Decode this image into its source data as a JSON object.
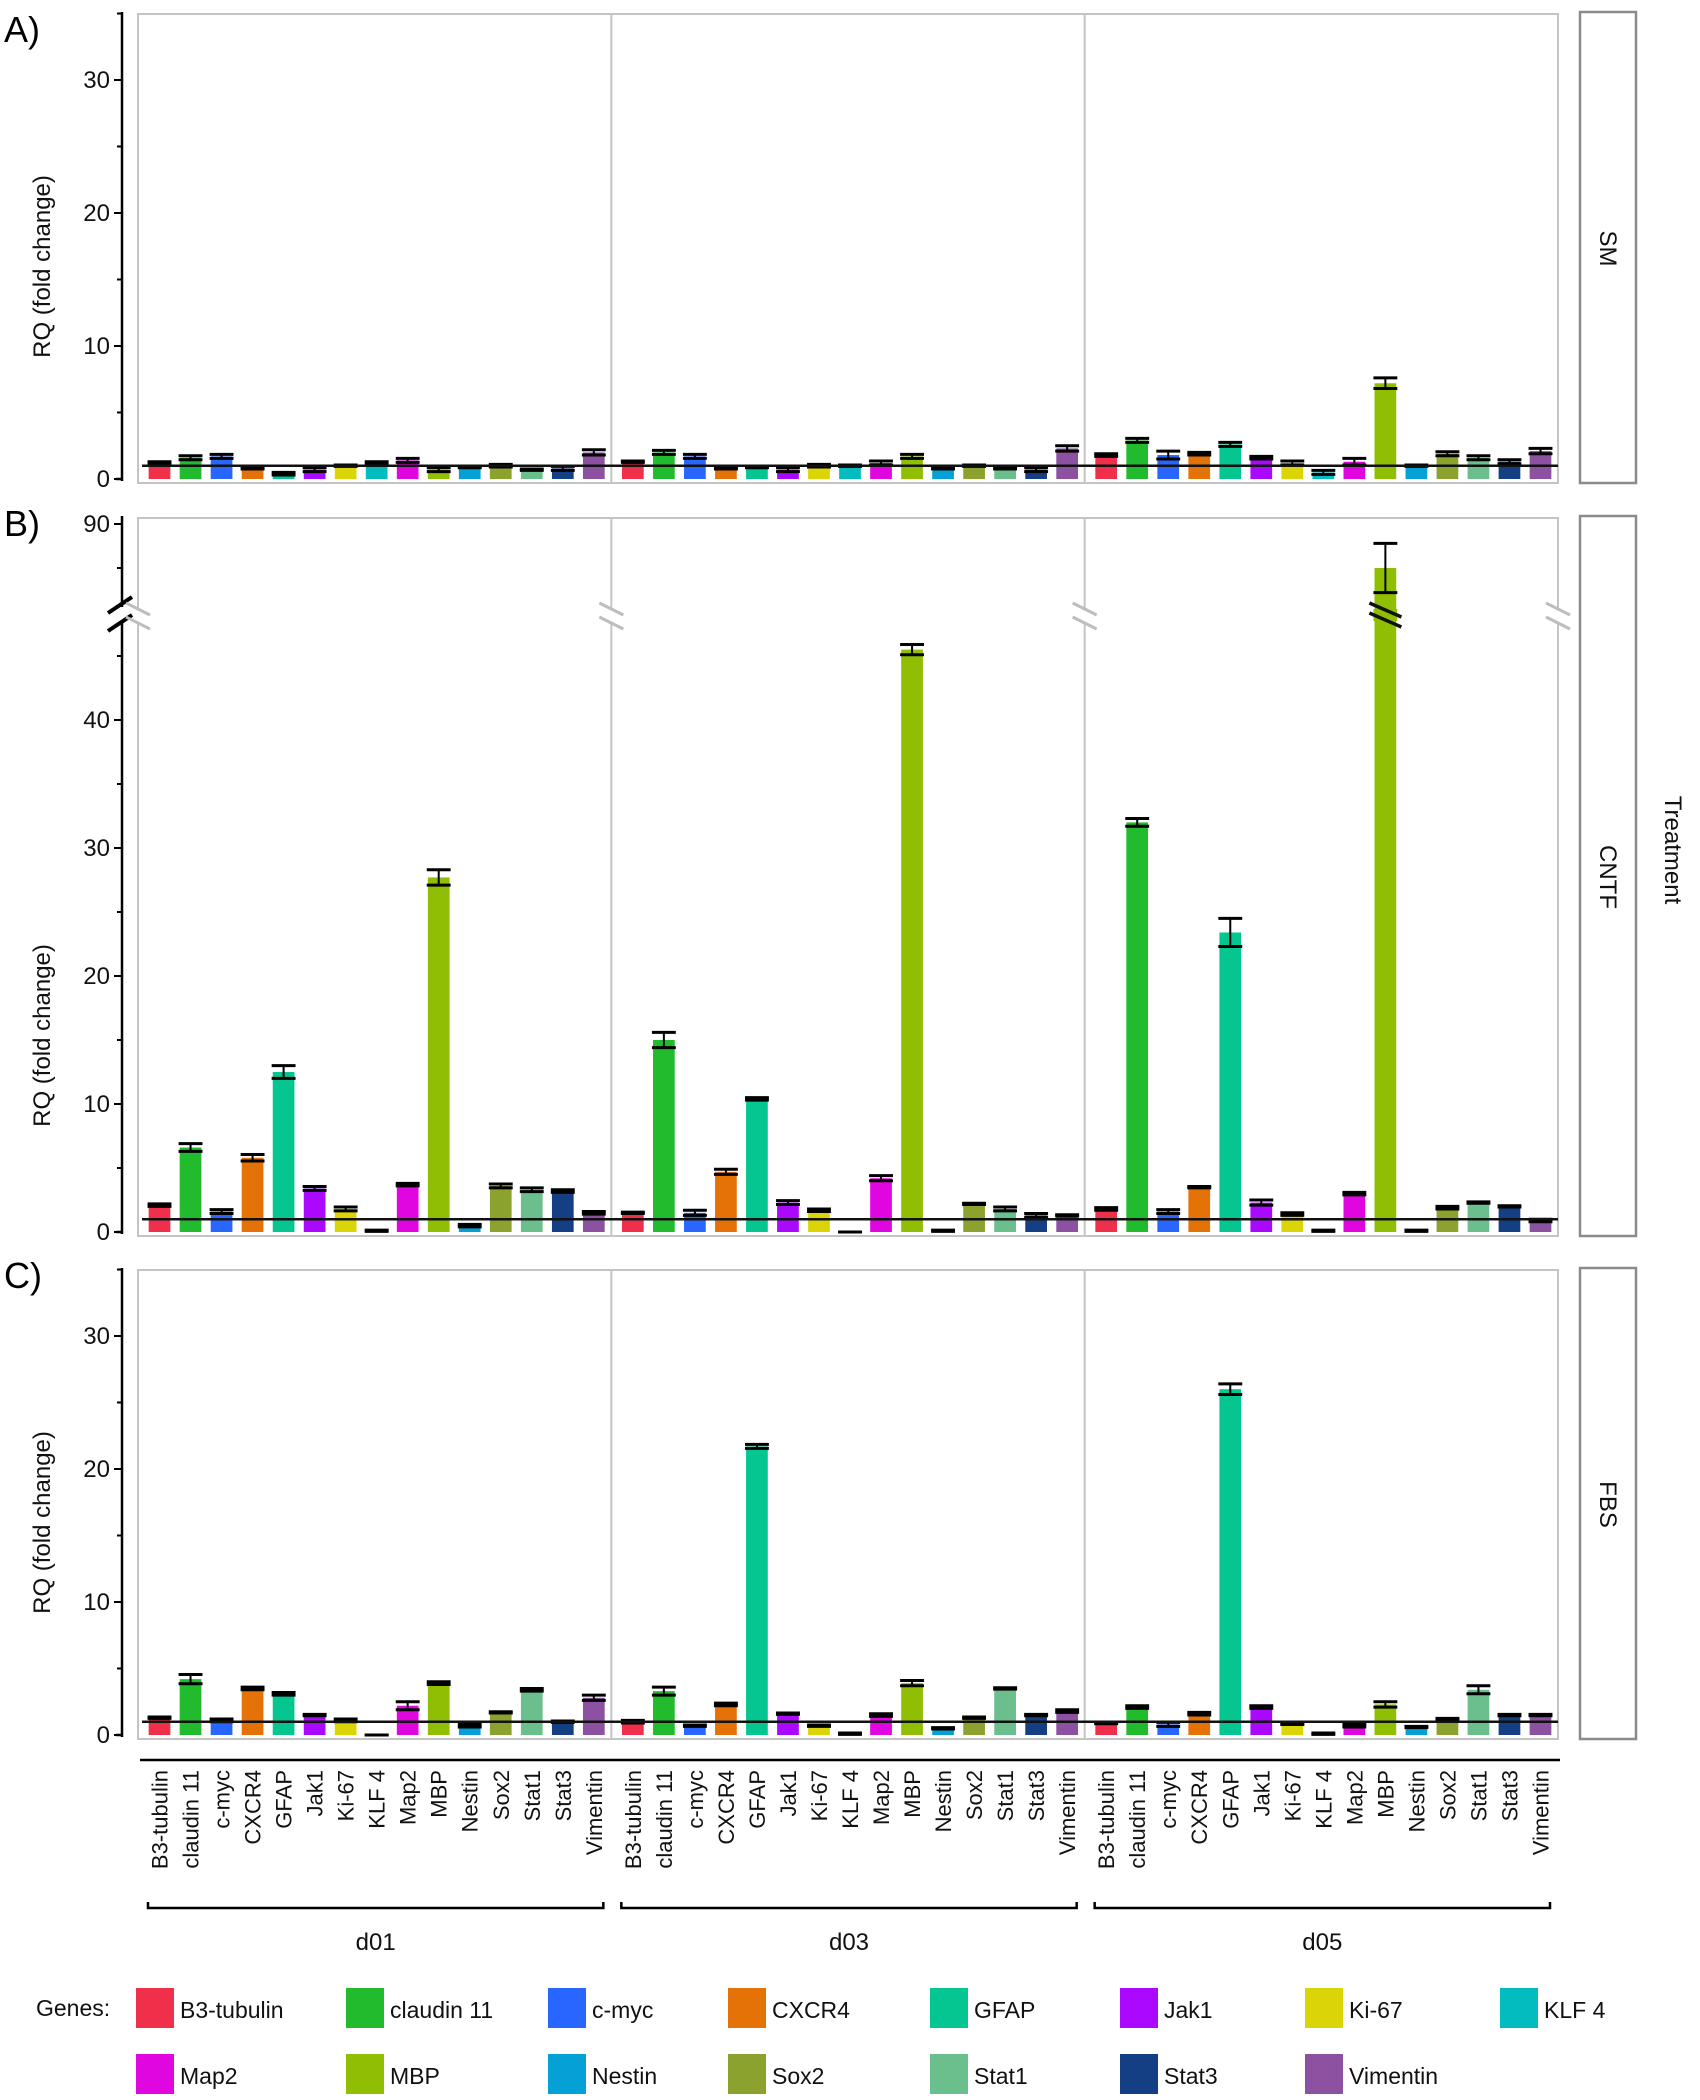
{
  "chart_data": {
    "type": "bar",
    "title": "",
    "ylabel": "RQ (fold change)",
    "facet_label": "Treatment",
    "reference_line": 1,
    "groups": [
      "d01",
      "d03",
      "d05"
    ],
    "categories": [
      "B3-tubulin",
      "claudin 11",
      "c-myc",
      "CXCR4",
      "GFAP",
      "Jak1",
      "Ki-67",
      "KLF 4",
      "Map2",
      "MBP",
      "Nestin",
      "Sox2",
      "Stat1",
      "Stat3",
      "Vimentin"
    ],
    "colors": [
      "#f0304a",
      "#22bb2e",
      "#2866ff",
      "#e57207",
      "#05c690",
      "#aa08ff",
      "#dbd406",
      "#03bcbf",
      "#e006e0",
      "#8fbe03",
      "#05a1d6",
      "#8ca22f",
      "#6bbf8d",
      "#143f84",
      "#8c52a1"
    ],
    "legend": {
      "title": "Genes:",
      "placement": "bottom"
    },
    "panels": [
      {
        "label": "A)",
        "treatment": "SM",
        "ylim": [
          0,
          35
        ],
        "yticks": [
          0,
          10,
          20,
          30
        ],
        "series": [
          {
            "group": "d01",
            "values": [
              1.2,
              1.6,
              1.7,
              0.8,
              0.4,
              0.7,
              1.0,
              1.2,
              1.4,
              0.7,
              0.9,
              1.0,
              0.7,
              0.8,
              2.0
            ],
            "errors": [
              0.1,
              0.15,
              0.15,
              0.05,
              0.1,
              0.15,
              0.05,
              0.1,
              0.15,
              0.15,
              0.05,
              0.1,
              0.05,
              0.15,
              0.2
            ]
          },
          {
            "group": "d03",
            "values": [
              1.3,
              2.0,
              1.7,
              0.8,
              0.9,
              0.7,
              1.0,
              1.0,
              1.2,
              1.7,
              0.8,
              1.0,
              0.8,
              0.7,
              2.3
            ],
            "errors": [
              0.05,
              0.15,
              0.15,
              0.05,
              0.05,
              0.15,
              0.1,
              0.05,
              0.15,
              0.15,
              0.05,
              0.05,
              0.05,
              0.15,
              0.2
            ]
          },
          {
            "group": "d05",
            "values": [
              1.8,
              2.9,
              1.8,
              1.9,
              2.6,
              1.6,
              1.2,
              0.5,
              1.3,
              7.2,
              1.0,
              1.9,
              1.6,
              1.3,
              2.1
            ],
            "errors": [
              0.1,
              0.15,
              0.3,
              0.1,
              0.15,
              0.1,
              0.15,
              0.15,
              0.25,
              0.4,
              0.05,
              0.15,
              0.15,
              0.15,
              0.2
            ]
          }
        ]
      },
      {
        "label": "B)",
        "treatment": "CNTF",
        "ylim": [
          0,
          90
        ],
        "axis_break": [
          48,
          80
        ],
        "yticks": [
          0,
          10,
          20,
          30,
          40,
          90
        ],
        "series": [
          {
            "group": "d01",
            "values": [
              2.1,
              6.6,
              1.6,
              5.8,
              12.5,
              3.4,
              1.8,
              0.1,
              3.7,
              27.7,
              0.5,
              3.6,
              3.3,
              3.2,
              1.5
            ],
            "errors": [
              0.1,
              0.3,
              0.15,
              0.25,
              0.5,
              0.15,
              0.15,
              0.05,
              0.1,
              0.6,
              0.1,
              0.15,
              0.15,
              0.1,
              0.1
            ]
          },
          {
            "group": "d03",
            "values": [
              1.5,
              15.0,
              1.5,
              4.7,
              10.4,
              2.3,
              1.7,
              0.0,
              4.2,
              45.5,
              0.1,
              2.2,
              1.8,
              1.3,
              1.3
            ],
            "errors": [
              0.05,
              0.6,
              0.2,
              0.2,
              0.1,
              0.15,
              0.1,
              0.0,
              0.2,
              0.4,
              0.05,
              0.05,
              0.15,
              0.15,
              0.05
            ]
          },
          {
            "group": "d05",
            "values": [
              1.8,
              32.0,
              1.6,
              3.5,
              23.4,
              2.3,
              1.4,
              0.1,
              3.0,
              85.0,
              0.1,
              1.9,
              2.3,
              2.0,
              0.9
            ],
            "errors": [
              0.1,
              0.3,
              0.15,
              0.05,
              1.1,
              0.2,
              0.1,
              0.05,
              0.1,
              2.8,
              0.05,
              0.1,
              0.05,
              0.05,
              0.1
            ]
          }
        ]
      },
      {
        "label": "C)",
        "treatment": "FBS",
        "ylim": [
          0,
          35
        ],
        "yticks": [
          0,
          10,
          20,
          30
        ],
        "series": [
          {
            "group": "d01",
            "values": [
              1.3,
              4.2,
              1.1,
              3.5,
              3.1,
              1.5,
              1.1,
              0.0,
              2.2,
              3.9,
              0.7,
              1.7,
              3.4,
              1.0,
              2.8
            ],
            "errors": [
              0.05,
              0.35,
              0.1,
              0.1,
              0.1,
              0.05,
              0.1,
              0.0,
              0.3,
              0.1,
              0.1,
              0.05,
              0.1,
              0.05,
              0.2
            ]
          },
          {
            "group": "d03",
            "values": [
              1.0,
              3.3,
              0.7,
              2.3,
              21.7,
              1.6,
              0.7,
              0.1,
              1.5,
              3.9,
              0.5,
              1.3,
              3.5,
              1.5,
              1.8
            ],
            "errors": [
              0.1,
              0.3,
              0.05,
              0.1,
              0.15,
              0.05,
              0.05,
              0.05,
              0.1,
              0.2,
              0.05,
              0.05,
              0.05,
              0.05,
              0.1
            ]
          },
          {
            "group": "d05",
            "values": [
              0.9,
              2.1,
              0.8,
              1.6,
              26.0,
              2.1,
              0.8,
              0.1,
              0.7,
              2.3,
              0.6,
              1.2,
              3.4,
              1.5,
              1.5
            ],
            "errors": [
              0.05,
              0.1,
              0.15,
              0.1,
              0.4,
              0.1,
              0.0,
              0.05,
              0.1,
              0.2,
              0.05,
              0.05,
              0.3,
              0.05,
              0.05
            ]
          }
        ]
      }
    ]
  }
}
